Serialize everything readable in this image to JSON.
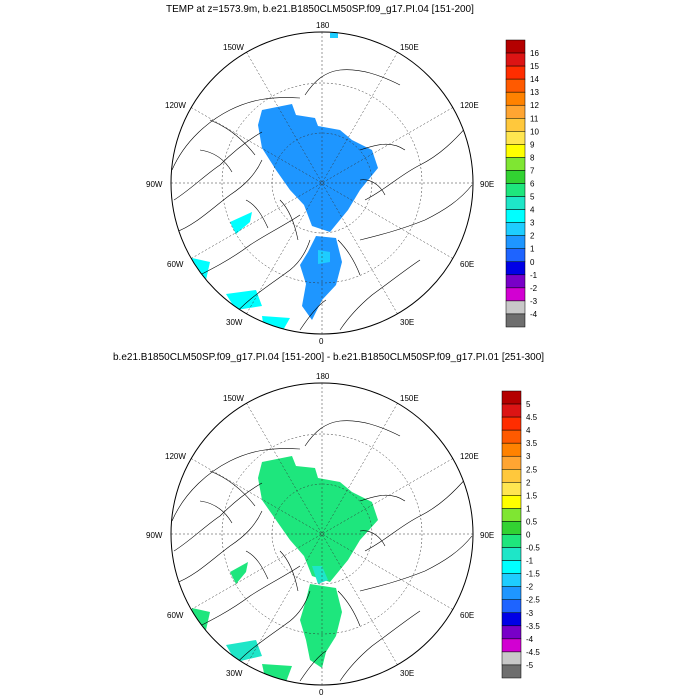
{
  "panels": [
    {
      "title": "TEMP at z=1573.9m, b.e21.B1850CLM50SP.f09_g17.PI.04 [151-200]",
      "lon_labels": [
        "180",
        "150E",
        "120E",
        "90E",
        "60E",
        "30E",
        "0",
        "30W",
        "60W",
        "90W",
        "120W",
        "150W"
      ],
      "colorbar": {
        "labels": [
          "16",
          "15",
          "14",
          "13",
          "12",
          "11",
          "10",
          "9",
          "8",
          "7",
          "6",
          "5",
          "4",
          "3",
          "2",
          "1",
          "0",
          "-1",
          "-2",
          "-3",
          "-4"
        ],
        "colors": [
          "#b40000",
          "#dc1414",
          "#ff2d00",
          "#ff5a00",
          "#ff8200",
          "#ffa532",
          "#ffc83c",
          "#ffe650",
          "#ffff00",
          "#7fe632",
          "#32d232",
          "#1ee67d",
          "#1ee6c8",
          "#00ffff",
          "#1ecdff",
          "#1e96ff",
          "#1e64ff",
          "#0000e6",
          "#7800c8",
          "#d200d2",
          "#c8c8c8",
          "#6e6e6e"
        ]
      }
    },
    {
      "title": "b.e21.B1850CLM50SP.f09_g17.PI.04 [151-200] - b.e21.B1850CLM50SP.f09_g17.PI.01 [251-300]",
      "lon_labels": [
        "180",
        "150E",
        "120E",
        "90E",
        "60E",
        "30E",
        "0",
        "30W",
        "60W",
        "90W",
        "120W",
        "150W"
      ],
      "colorbar": {
        "labels": [
          "5",
          "4.5",
          "4",
          "3.5",
          "3",
          "2.5",
          "2",
          "1.5",
          "1",
          "0.5",
          "0",
          "-0.5",
          "-1",
          "-1.5",
          "-2",
          "-2.5",
          "-3",
          "-3.5",
          "-4",
          "-4.5",
          "-5"
        ],
        "colors": [
          "#b40000",
          "#dc1414",
          "#ff2d00",
          "#ff5a00",
          "#ff8200",
          "#ffa532",
          "#ffc83c",
          "#ffe650",
          "#ffff00",
          "#7fe632",
          "#32d232",
          "#1ee67d",
          "#1ee6c8",
          "#00ffff",
          "#1ecdff",
          "#1e96ff",
          "#1e64ff",
          "#0000e6",
          "#7800c8",
          "#d200d2",
          "#c8c8c8",
          "#6e6e6e"
        ]
      }
    }
  ]
}
